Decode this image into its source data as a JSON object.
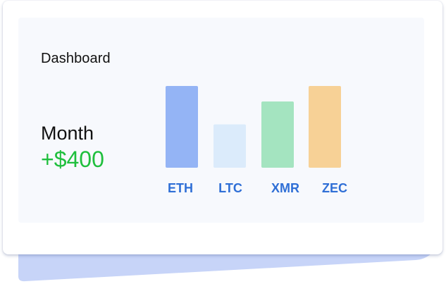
{
  "card": {
    "title": "Dashboard",
    "period_label": "Month",
    "amount": "+$400"
  },
  "colors": {
    "amount": "#1fbf3d",
    "tick_labels": "#2f6fd6",
    "bars": [
      "#94b4f5",
      "#dbebfb",
      "#a4e4c0",
      "#f7d196"
    ]
  },
  "chart_data": {
    "type": "bar",
    "categories": [
      "ETH",
      "LTC",
      "XMR",
      "ZEC"
    ],
    "values": [
      100,
      53,
      81,
      100
    ],
    "ylim": [
      0,
      100
    ],
    "grid": false,
    "legend": "none"
  }
}
